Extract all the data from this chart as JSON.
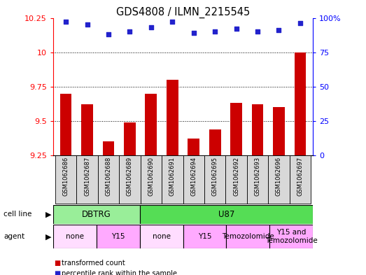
{
  "title": "GDS4808 / ILMN_2215545",
  "samples": [
    "GSM1062686",
    "GSM1062687",
    "GSM1062688",
    "GSM1062689",
    "GSM1062690",
    "GSM1062691",
    "GSM1062694",
    "GSM1062695",
    "GSM1062692",
    "GSM1062693",
    "GSM1062696",
    "GSM1062697"
  ],
  "bar_values": [
    9.7,
    9.62,
    9.35,
    9.49,
    9.7,
    9.8,
    9.37,
    9.44,
    9.63,
    9.62,
    9.6,
    10.0
  ],
  "dot_values": [
    97,
    95,
    88,
    90,
    93,
    97,
    89,
    90,
    92,
    90,
    91,
    96
  ],
  "ylim_left": [
    9.25,
    10.25
  ],
  "ylim_right": [
    0,
    100
  ],
  "yticks_left": [
    9.25,
    9.5,
    9.75,
    10.0,
    10.25
  ],
  "yticks_right": [
    0,
    25,
    50,
    75,
    100
  ],
  "bar_color": "#cc0000",
  "dot_color": "#2222cc",
  "background_color": "#ffffff",
  "plot_bg_color": "#ffffff",
  "xtick_bg_color": "#d8d8d8",
  "cell_line_groups": [
    {
      "label": "DBTRG",
      "start": 0,
      "end": 4,
      "color": "#99ee99"
    },
    {
      "label": "U87",
      "start": 4,
      "end": 12,
      "color": "#55dd55"
    }
  ],
  "agent_groups": [
    {
      "label": "none",
      "start": 0,
      "end": 2,
      "color": "#ffddff"
    },
    {
      "label": "Y15",
      "start": 2,
      "end": 4,
      "color": "#ffaaff"
    },
    {
      "label": "none",
      "start": 4,
      "end": 6,
      "color": "#ffddff"
    },
    {
      "label": "Y15",
      "start": 6,
      "end": 8,
      "color": "#ffaaff"
    },
    {
      "label": "Temozolomide",
      "start": 8,
      "end": 10,
      "color": "#ffaaff"
    },
    {
      "label": "Y15 and\nTemozolomide",
      "start": 10,
      "end": 12,
      "color": "#ffaaff"
    }
  ],
  "legend_red_label": "transformed count",
  "legend_blue_label": "percentile rank within the sample"
}
